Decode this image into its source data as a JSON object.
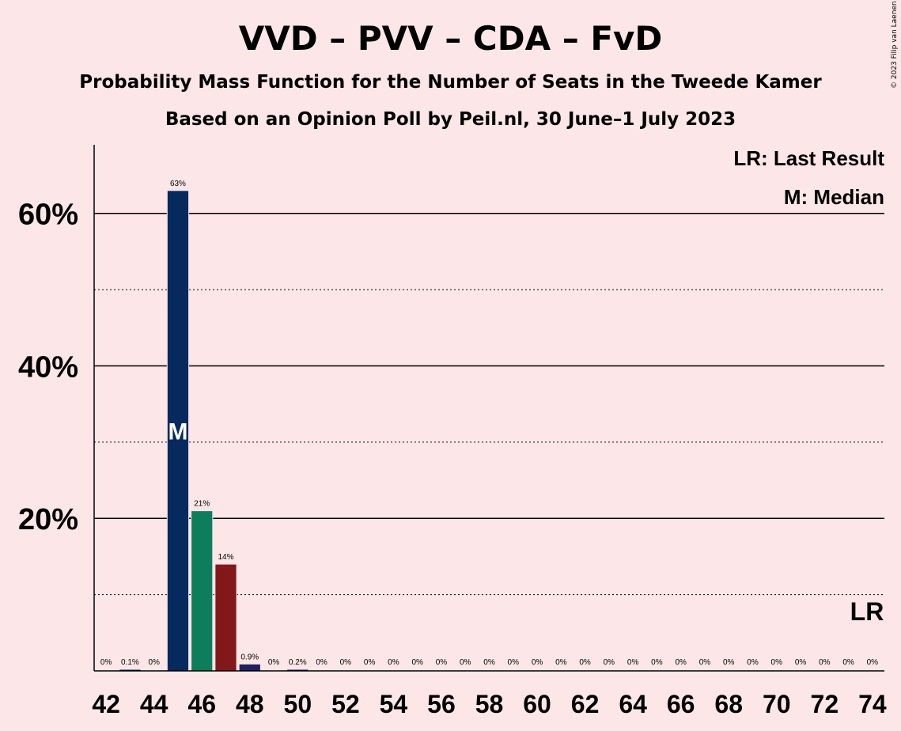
{
  "title": "VVD – PVV – CDA – FvD",
  "subtitle": "Probability Mass Function for the Number of Seats in the Tweede Kamer",
  "poll_note": "Based on an Opinion Poll by Peil.nl, 30 June–1 July 2023",
  "copyright": "© 2023 Filip van Laenen",
  "legend": {
    "last_result": "LR: Last Result",
    "median": "M: Median"
  },
  "markers": {
    "median_label": "M",
    "last_result_label": "LR",
    "median_seat": 45,
    "last_result_seat": 74
  },
  "colors": {
    "background": "#fce6e7",
    "VVD": "#062a5e",
    "PVV": "#0e7d5c",
    "CDA": "#83181b",
    "FvD": "#202060"
  },
  "chart_data": {
    "type": "bar",
    "xlabel": "",
    "ylabel": "",
    "ylim": [
      0,
      69
    ],
    "y_major_ticks": [
      20,
      40,
      60
    ],
    "y_tick_labels": [
      "20%",
      "40%",
      "60%"
    ],
    "y_minor_gridlines": [
      10,
      30,
      50
    ],
    "x": [
      42,
      43,
      44,
      45,
      46,
      47,
      48,
      49,
      50,
      51,
      52,
      53,
      54,
      55,
      56,
      57,
      58,
      59,
      60,
      61,
      62,
      63,
      64,
      65,
      66,
      67,
      68,
      69,
      70,
      71,
      72,
      73,
      74
    ],
    "x_tick_labels": [
      "42",
      "44",
      "46",
      "48",
      "50",
      "52",
      "54",
      "56",
      "58",
      "60",
      "62",
      "64",
      "66",
      "68",
      "70",
      "72",
      "74"
    ],
    "values": [
      0,
      0.1,
      0,
      63,
      21,
      14,
      0.9,
      0,
      0.2,
      0,
      0,
      0,
      0,
      0,
      0,
      0,
      0,
      0,
      0,
      0,
      0,
      0,
      0,
      0,
      0,
      0,
      0,
      0,
      0,
      0,
      0,
      0,
      0
    ],
    "value_labels": [
      "0%",
      "0.1%",
      "0%",
      "63%",
      "21%",
      "14%",
      "0.9%",
      "0%",
      "0.2%",
      "0%",
      "0%",
      "0%",
      "0%",
      "0%",
      "0%",
      "0%",
      "0%",
      "0%",
      "0%",
      "0%",
      "0%",
      "0%",
      "0%",
      "0%",
      "0%",
      "0%",
      "0%",
      "0%",
      "0%",
      "0%",
      "0%",
      "0%",
      "0%"
    ],
    "bar_colors": [
      "#062a5e",
      "#062a5e",
      "#062a5e",
      "#062a5e",
      "#0e7d5c",
      "#83181b",
      "#202060",
      "#202060",
      "#202060",
      "#202060",
      "#202060",
      "#202060",
      "#202060",
      "#202060",
      "#202060",
      "#202060",
      "#202060",
      "#202060",
      "#202060",
      "#202060",
      "#202060",
      "#202060",
      "#202060",
      "#202060",
      "#202060",
      "#202060",
      "#202060",
      "#202060",
      "#202060",
      "#202060",
      "#202060",
      "#202060",
      "#202060"
    ]
  }
}
